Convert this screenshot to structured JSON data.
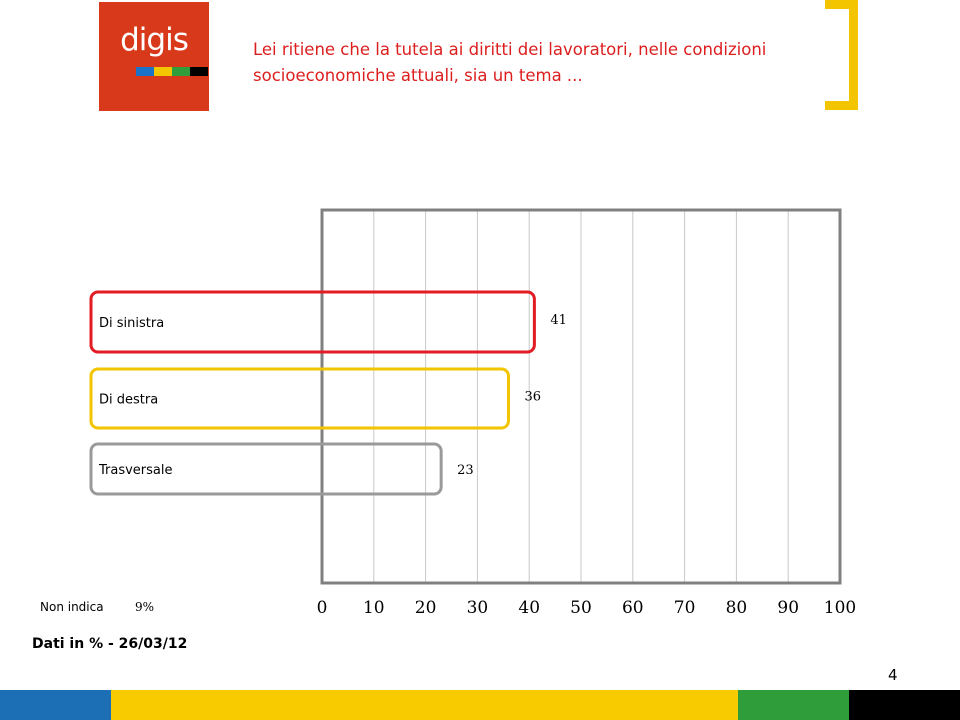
{
  "logo": {
    "text": "digis",
    "strip_colors": [
      "#1a73c8",
      "#f4c600",
      "#2f9e3a",
      "#000000"
    ]
  },
  "question": "Lei ritiene che la tutela ai diritti dei lavoratori, nelle condizioni socioeconomiche attuali, sia un tema ...",
  "colors": {
    "red": "#e31b23",
    "yellow": "#f2c500",
    "gray": "#9a9a9a",
    "green": "#2f9e3a",
    "blue": "#1c6fb5"
  },
  "chart_data": {
    "type": "bar",
    "orientation": "horizontal",
    "categories": [
      "Di sinistra",
      "Di destra",
      "Trasversale"
    ],
    "values": [
      41,
      36,
      23
    ],
    "xlim": [
      0,
      100
    ],
    "xticks": [
      "0",
      "10",
      "20",
      "30",
      "40",
      "50",
      "60",
      "70",
      "80",
      "90",
      "100"
    ],
    "grid": true,
    "outline_colors": [
      "#e31b23",
      "#f2c500",
      "#9a9a9a"
    ],
    "value_labels": [
      "41",
      "36",
      "23"
    ]
  },
  "non_indica": {
    "label": "Non indica",
    "value": "9%"
  },
  "footnote": "Dati in % - 26/03/12",
  "page_number": "4"
}
